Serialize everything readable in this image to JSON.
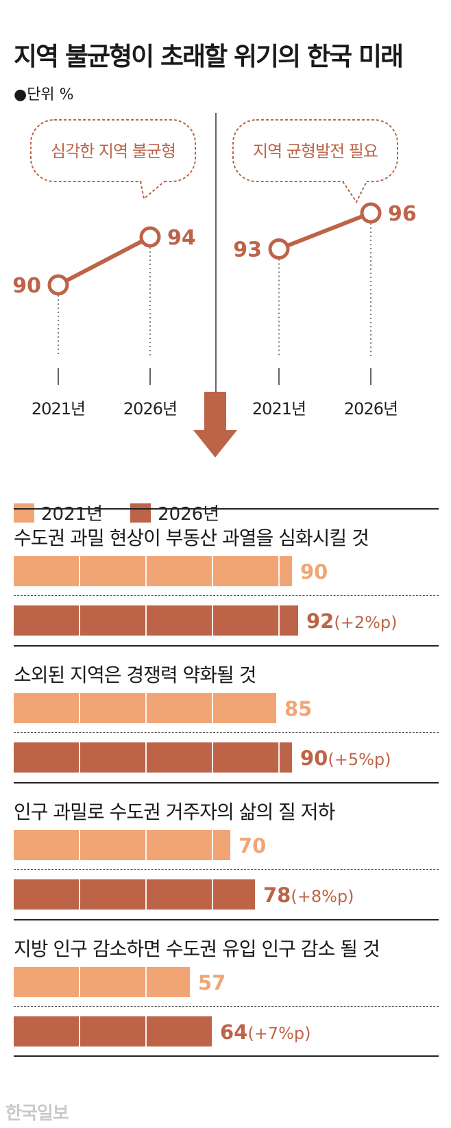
{
  "header": {
    "title": "지역 불균형이 초래할 위기의 한국 미래",
    "unit_label": "●단위 %"
  },
  "chart_data": [
    {
      "type": "line",
      "categories": [
        "2021년",
        "2026년"
      ],
      "series": [
        {
          "name": "심각한 지역 불균형",
          "values": [
            90,
            94
          ]
        }
      ]
    },
    {
      "type": "line",
      "categories": [
        "2021년",
        "2026년"
      ],
      "series": [
        {
          "name": "지역 균형발전 필요",
          "values": [
            93,
            96
          ]
        }
      ]
    },
    {
      "type": "bar",
      "orientation": "horizontal",
      "legend": [
        "2021년",
        "2026년"
      ],
      "categories": [
        "수도권 과밀 현상이 부동산 과열을 심화시킬 것",
        "소외된 지역은 경쟁력 약화될 것",
        "인구 과밀로 수도권 거주자의 삶의 질 저하",
        "지방 인구 감소하면 수도권 유입 인구 감소 될 것"
      ],
      "series": [
        {
          "name": "2021년",
          "values": [
            90,
            85,
            70,
            57
          ]
        },
        {
          "name": "2026년",
          "values": [
            92,
            90,
            78,
            64
          ]
        }
      ],
      "changes": [
        "(+2%p)",
        "(+5%p)",
        "(+8%p)",
        "(+7%p)"
      ]
    }
  ],
  "colors": {
    "y2021": "#f2a574",
    "y2026": "#bd6448"
  },
  "credit": "한국일보"
}
